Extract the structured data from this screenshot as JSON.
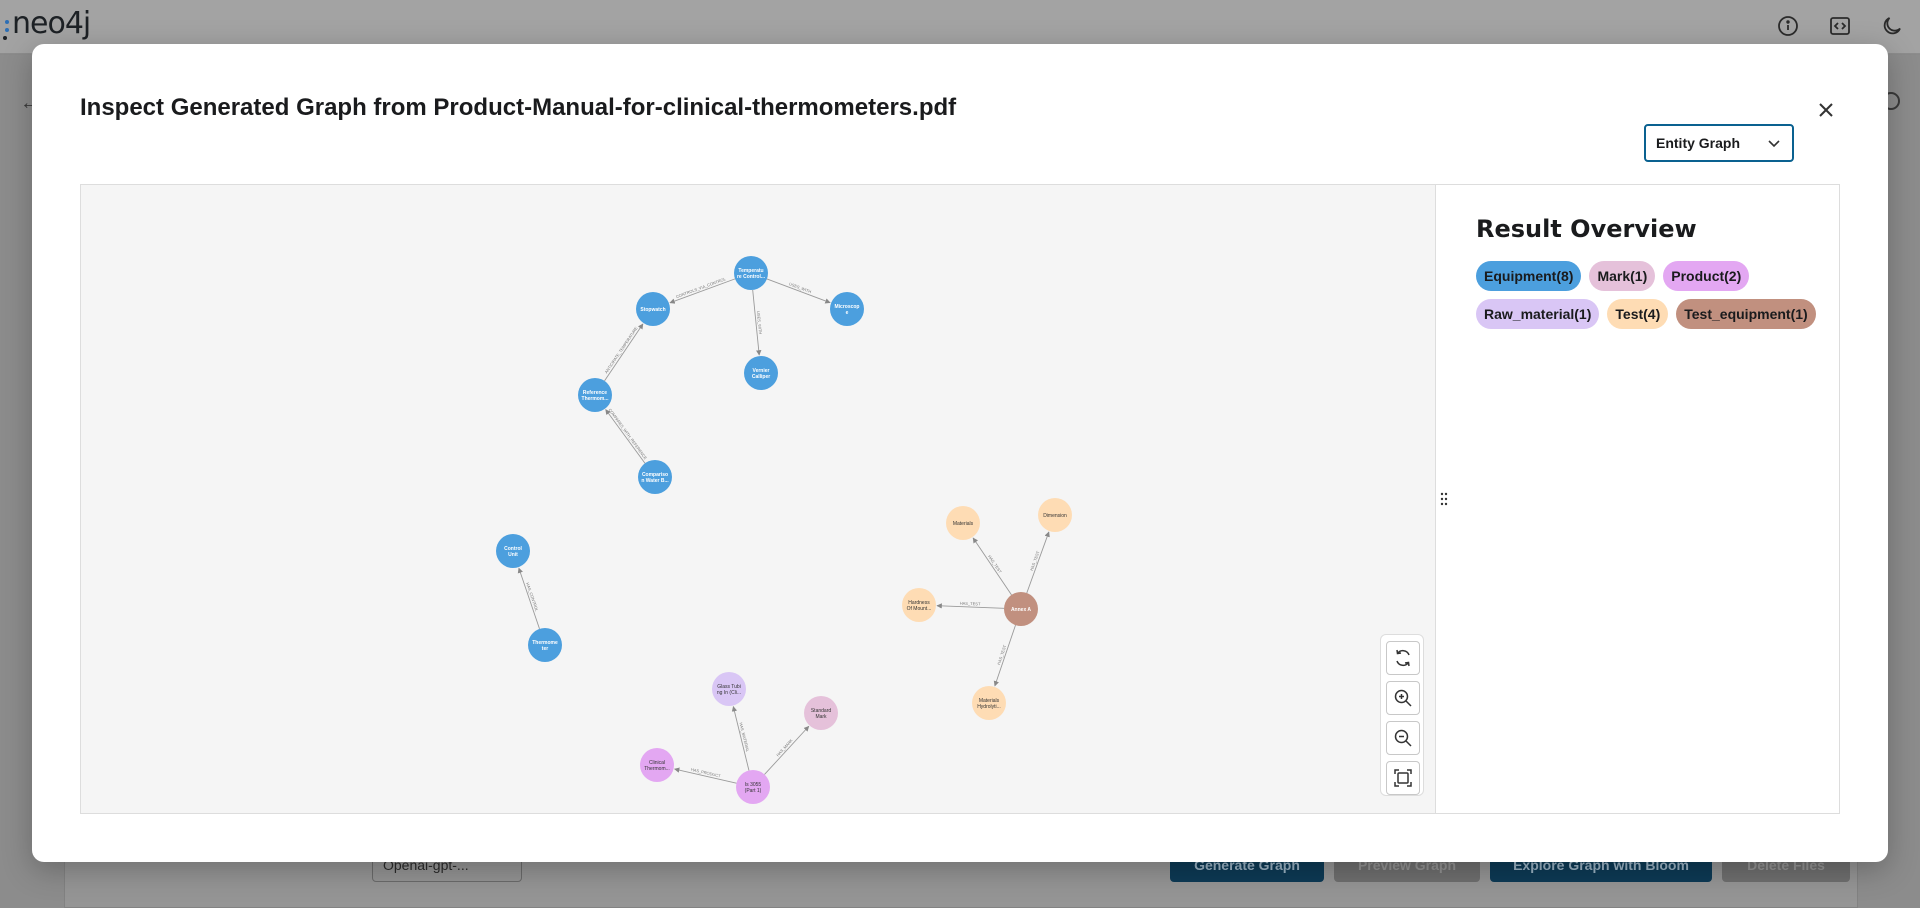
{
  "app": {
    "logo_text": "neo4j",
    "background_select_value": "Openai-gpt-...",
    "background_buttons": [
      "Generate Graph",
      "Preview Graph",
      "Explore Graph with Bloom",
      "Delete Files"
    ]
  },
  "modal": {
    "title": "Inspect Generated Graph from Product-Manual-for-clinical-thermometers.pdf",
    "view_select_value": "Entity Graph"
  },
  "result_overview": {
    "title": "Result Overview",
    "labels": [
      {
        "text": "Equipment(8)",
        "color": "#4c9fde"
      },
      {
        "text": "Mark(1)",
        "color": "#e5c1da"
      },
      {
        "text": "Product(2)",
        "color": "#e3a7f2"
      },
      {
        "text": "Raw_material(1)",
        "color": "#d9c6f5"
      },
      {
        "text": "Test(4)",
        "color": "#fedcb4"
      },
      {
        "text": "Test_equipment(1)",
        "color": "#c1907f"
      }
    ]
  },
  "graph": {
    "nodes": [
      {
        "id": "n1",
        "label": [
          "Temperatu",
          "re Control..."
        ],
        "type": "Equipment"
      },
      {
        "id": "n2",
        "label": [
          "Stopwatch"
        ],
        "type": "Equipment"
      },
      {
        "id": "n3",
        "label": [
          "Microscop",
          "e"
        ],
        "type": "Equipment"
      },
      {
        "id": "n4",
        "label": [
          "Vernier",
          "Calliper"
        ],
        "type": "Equipment"
      },
      {
        "id": "n5",
        "label": [
          "Reference",
          "Thermom..."
        ],
        "type": "Equipment"
      },
      {
        "id": "n6",
        "label": [
          "Compariso",
          "n Water B..."
        ],
        "type": "Equipment"
      },
      {
        "id": "n7",
        "label": [
          "Control",
          "Unit"
        ],
        "type": "Equipment"
      },
      {
        "id": "n8",
        "label": [
          "Thermome",
          "ter"
        ],
        "type": "Equipment"
      },
      {
        "id": "n9",
        "label": [
          "Materials"
        ],
        "type": "Test"
      },
      {
        "id": "n10",
        "label": [
          "Dimension"
        ],
        "type": "Test"
      },
      {
        "id": "n11",
        "label": [
          "Hardness",
          "Of Mount..."
        ],
        "type": "Test"
      },
      {
        "id": "n12",
        "label": [
          "Materials",
          "Hydrolyti..."
        ],
        "type": "Test"
      },
      {
        "id": "n13",
        "label": [
          "Annex A"
        ],
        "type": "Test_equipment"
      },
      {
        "id": "n14",
        "label": [
          "Glass Tubi",
          "ng In (Cli..."
        ],
        "type": "Raw_material"
      },
      {
        "id": "n15",
        "label": [
          "Standard",
          "Mark"
        ],
        "type": "Mark"
      },
      {
        "id": "n16",
        "label": [
          "Clinical",
          "Thermom..."
        ],
        "type": "Product"
      },
      {
        "id": "n17",
        "label": [
          "Is 3055",
          "(Part 1)"
        ],
        "type": "Product"
      }
    ],
    "edges": [
      {
        "from": "n1",
        "to": "n2",
        "label": "CONTROLS_VIA_CONTROL"
      },
      {
        "from": "n1",
        "to": "n3",
        "label": "USES_WITH"
      },
      {
        "from": "n1",
        "to": "n4",
        "label": "USES_WITH"
      },
      {
        "from": "n5",
        "to": "n2",
        "label": "ANTICIPATE_TEMPERATURE"
      },
      {
        "from": "n6",
        "to": "n5",
        "label": "COMPARES_WITH_REFERENCE"
      },
      {
        "from": "n8",
        "to": "n7",
        "label": "HAS_CONTROL"
      },
      {
        "from": "n13",
        "to": "n9",
        "label": "HAS_TEST"
      },
      {
        "from": "n13",
        "to": "n10",
        "label": "HAS_TEST"
      },
      {
        "from": "n13",
        "to": "n11",
        "label": "HAS_TEST"
      },
      {
        "from": "n13",
        "to": "n12",
        "label": "HAS_TEST"
      },
      {
        "from": "n17",
        "to": "n14",
        "label": "HAS_MATERIAL"
      },
      {
        "from": "n17",
        "to": "n15",
        "label": "HAS_MARK"
      },
      {
        "from": "n17",
        "to": "n16",
        "label": "HAS_PRODUCT"
      }
    ]
  },
  "colors": {
    "Equipment": "#4c9fde",
    "Test": "#fedcb4",
    "Test_equipment": "#c1907f",
    "Raw_material": "#d9c6f5",
    "Mark": "#e5c1da",
    "Product": "#e3a7f2",
    "accent": "#0a6190"
  },
  "toolbar_icons": [
    "refresh-icon",
    "zoom-in-icon",
    "zoom-out-icon",
    "fit-to-screen-icon"
  ]
}
